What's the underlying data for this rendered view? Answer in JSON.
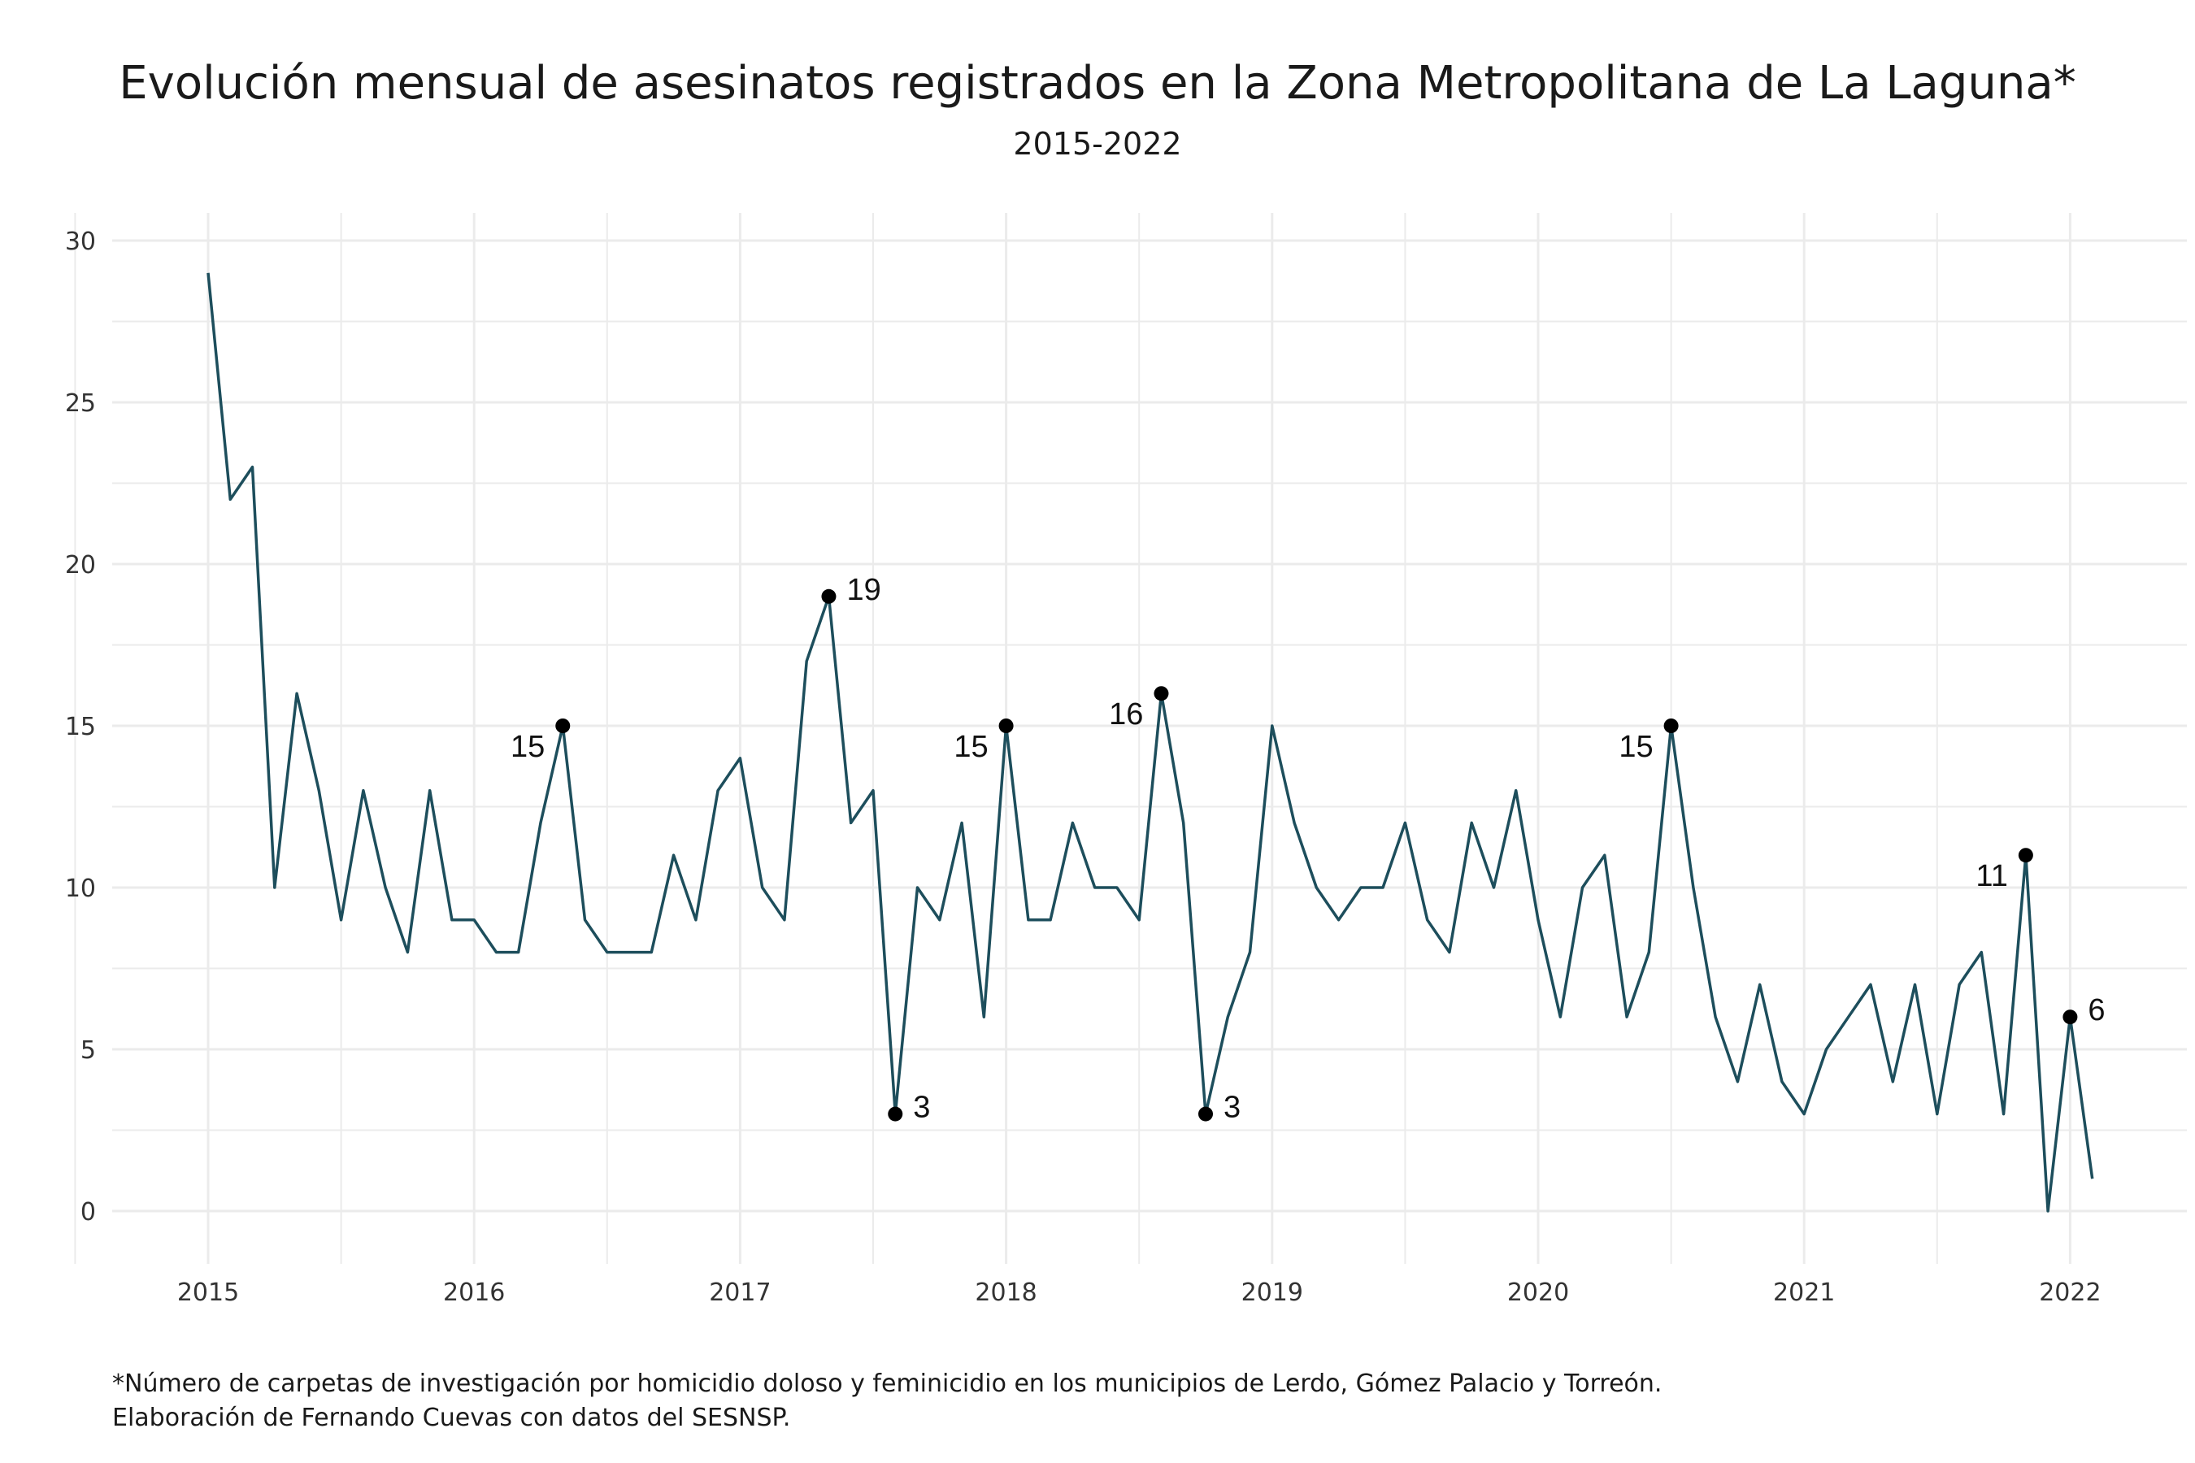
{
  "chart_data": {
    "type": "line",
    "title": "Evolución mensual de asesinatos registrados en la Zona Metropolitana de La Laguna*",
    "subtitle": "2015-2022",
    "xlabel": "",
    "ylabel": "",
    "x_ticks": [
      "2015",
      "2016",
      "2017",
      "2018",
      "2019",
      "2020",
      "2021",
      "2022"
    ],
    "y_ticks": [
      "0",
      "5",
      "10",
      "15",
      "20",
      "25",
      "30"
    ],
    "ylim": [
      0,
      30
    ],
    "x_start": "2015-01",
    "x_end": "2022-02",
    "grid": true,
    "line_color": "#1d4e5c",
    "point_color": "#000000",
    "series": [
      {
        "values": [
          29,
          22,
          23,
          10,
          16,
          13,
          9,
          13,
          10,
          8,
          13,
          9,
          9,
          8,
          8,
          12,
          15,
          9,
          8,
          8,
          8,
          11,
          9,
          13,
          14,
          10,
          9,
          17,
          19,
          12,
          13,
          3,
          10,
          9,
          12,
          6,
          15,
          9,
          9,
          12,
          10,
          10,
          9,
          16,
          12,
          3,
          6,
          8,
          15,
          12,
          10,
          9,
          10,
          10,
          12,
          9,
          8,
          12,
          10,
          13,
          9,
          6,
          10,
          11,
          6,
          8,
          15,
          10,
          6,
          4,
          7,
          4,
          3,
          5,
          6,
          7,
          4,
          7,
          3,
          7,
          8,
          3,
          11,
          0,
          6,
          1
        ]
      }
    ],
    "annotations": [
      {
        "month": "2016-05",
        "value": 15,
        "label": "15",
        "side": "left"
      },
      {
        "month": "2017-05",
        "value": 19,
        "label": "19",
        "side": "right"
      },
      {
        "month": "2017-08",
        "value": 3,
        "label": "3",
        "side": "right"
      },
      {
        "month": "2018-01",
        "value": 15,
        "label": "15",
        "side": "left"
      },
      {
        "month": "2018-08",
        "value": 16,
        "label": "16",
        "side": "left"
      },
      {
        "month": "2018-10",
        "value": 3,
        "label": "3",
        "side": "right"
      },
      {
        "month": "2020-07",
        "value": 15,
        "label": "15",
        "side": "left"
      },
      {
        "month": "2021-11",
        "value": 11,
        "label": "11",
        "side": "left"
      },
      {
        "month": "2022-01",
        "value": 6,
        "label": "6",
        "side": "right"
      }
    ]
  },
  "footnotes": {
    "line1": "*Número de carpetas de investigación por homicidio doloso y feminicidio en los municipios de Lerdo, Gómez Palacio y Torreón.",
    "line2": "Elaboración de Fernando Cuevas con datos del SESNSP."
  }
}
